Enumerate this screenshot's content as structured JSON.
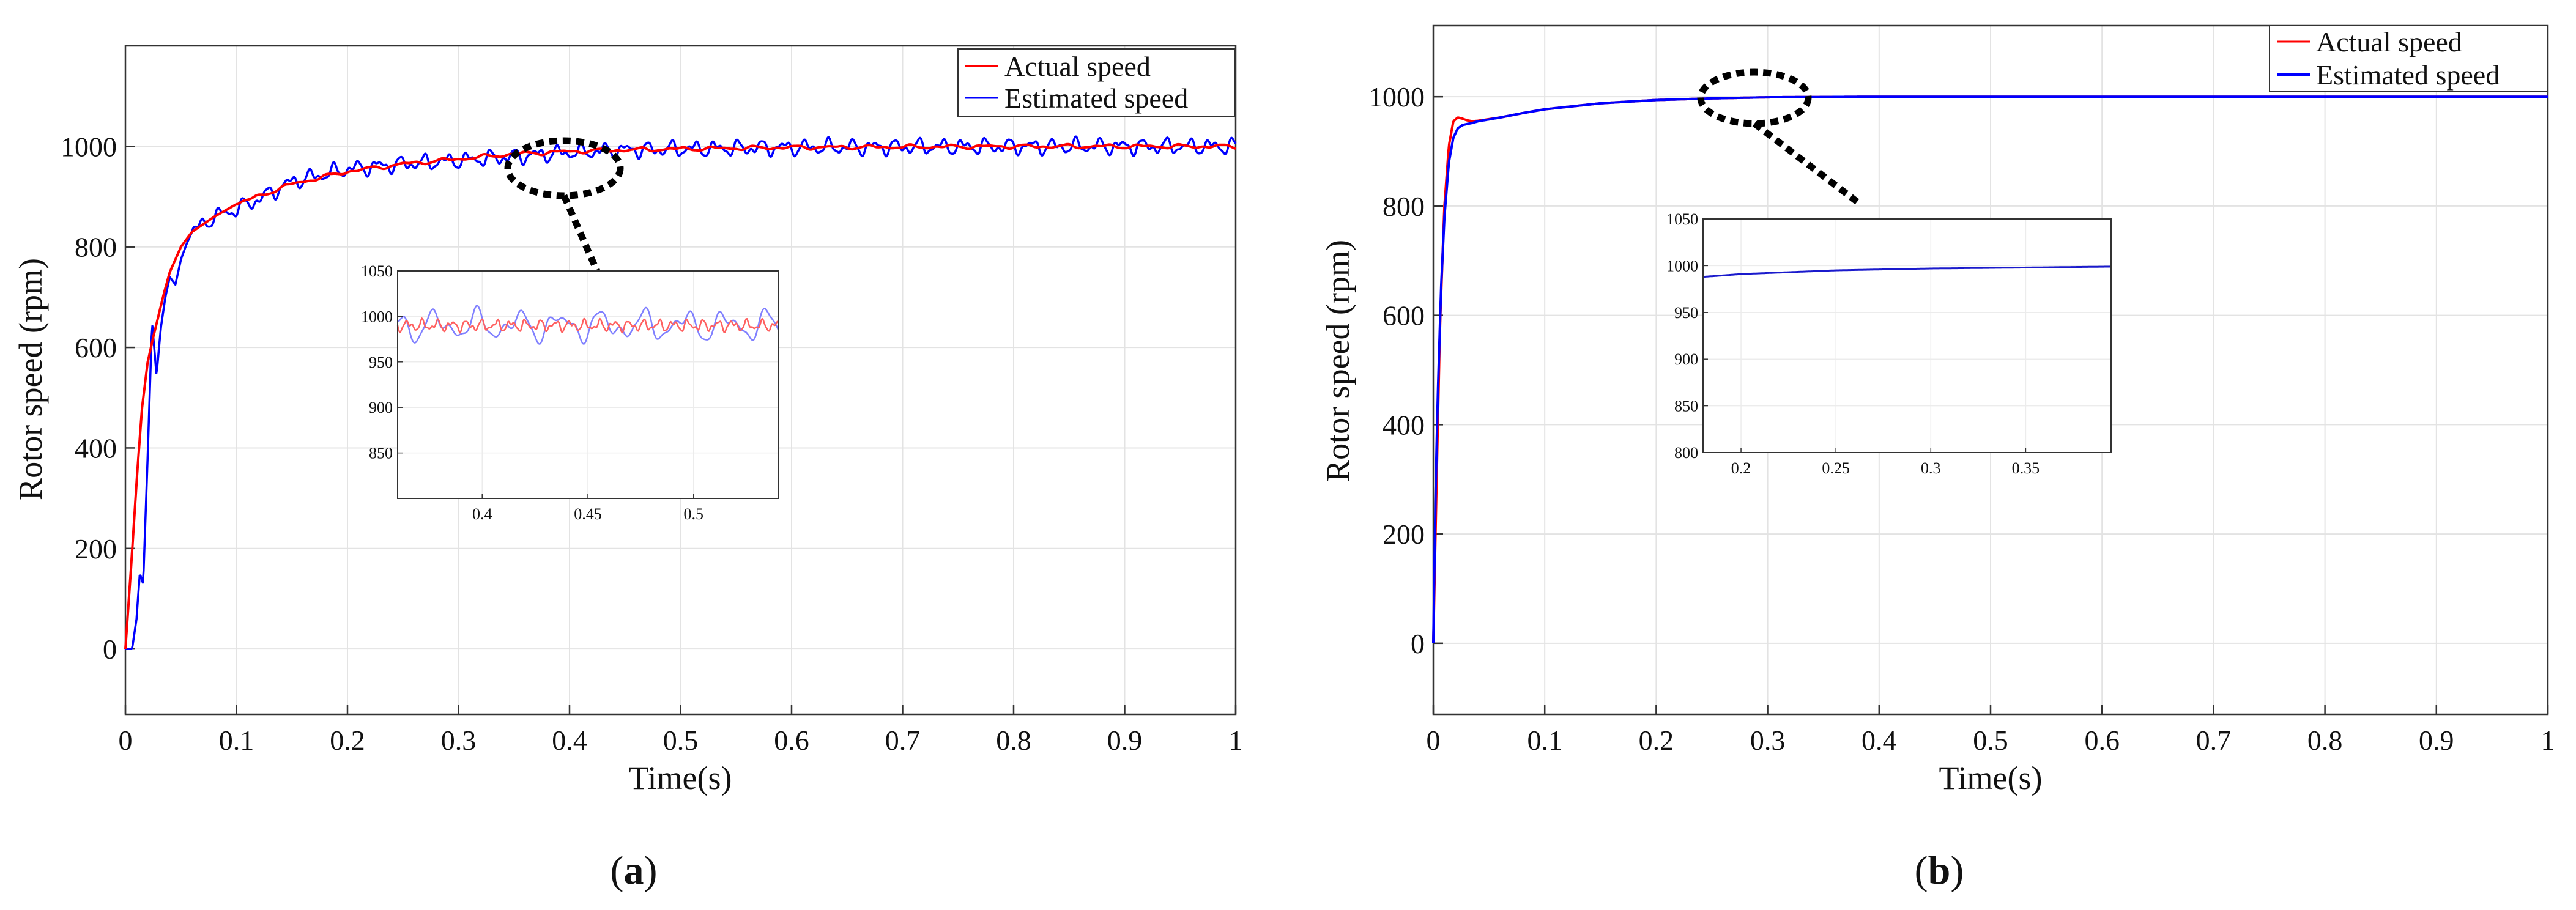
{
  "chart_data": [
    {
      "type": "line",
      "panel_label": "a",
      "xlabel": "Time(s)",
      "ylabel": "Rotor speed (rpm)",
      "xlim": [
        0,
        1
      ],
      "ylim": [
        -130,
        1200
      ],
      "xticks": [
        0,
        0.1,
        0.2,
        0.3,
        0.4,
        0.5,
        0.6,
        0.7,
        0.8,
        0.9,
        1
      ],
      "xtick_labels": [
        "0",
        "0.1",
        "0.2",
        "0.3",
        "0.4",
        "0.5",
        "0.6",
        "0.7",
        "0.8",
        "0.9",
        "1"
      ],
      "yticks": [
        0,
        200,
        400,
        600,
        800,
        1000
      ],
      "ytick_labels": [
        "0",
        "200",
        "400",
        "600",
        "800",
        "1000"
      ],
      "legend": [
        "Actual speed",
        "Estimated speed"
      ],
      "legend_location": "top-right",
      "series": [
        {
          "name": "Actual speed",
          "color": "#ff0000",
          "x": [
            0,
            0.005,
            0.01,
            0.015,
            0.02,
            0.025,
            0.03,
            0.035,
            0.04,
            0.05,
            0.06,
            0.08,
            0.1,
            0.15,
            0.2,
            0.25,
            0.3,
            0.35,
            0.4,
            0.45,
            0.5,
            0.6,
            0.7,
            0.8,
            0.9,
            1.0
          ],
          "y": [
            0,
            160,
            330,
            480,
            570,
            620,
            665,
            710,
            750,
            800,
            830,
            860,
            885,
            925,
            950,
            965,
            975,
            985,
            990,
            993,
            995,
            998,
            999,
            1000,
            1000,
            1000
          ]
        },
        {
          "name": "Estimated speed",
          "color": "#0000ff",
          "x": [
            0,
            0.006,
            0.01,
            0.013,
            0.016,
            0.02,
            0.024,
            0.028,
            0.032,
            0.036,
            0.04,
            0.045,
            0.05,
            0.055,
            0.06,
            0.07,
            0.08,
            0.1,
            0.12,
            0.15,
            0.2,
            0.25,
            0.3,
            0.35,
            0.4,
            0.45,
            0.5,
            0.6,
            0.7,
            0.8,
            0.9,
            1.0
          ],
          "y": [
            0,
            0,
            60,
            150,
            130,
            380,
            650,
            545,
            640,
            700,
            740,
            725,
            775,
            805,
            830,
            845,
            860,
            875,
            895,
            930,
            955,
            965,
            972,
            980,
            988,
            993,
            995,
            998,
            999,
            1000,
            1000,
            1000
          ],
          "oscillation_amplitude": 20
        }
      ],
      "zoom_ellipse_center": [
        0.4,
        1000
      ],
      "inset": {
        "xlim": [
          0.36,
          0.54
        ],
        "ylim": [
          800,
          1050
        ],
        "xticks": [
          0.4,
          0.45,
          0.5
        ],
        "xtick_labels": [
          "0.4",
          "0.45",
          "0.5"
        ],
        "yticks": [
          850,
          900,
          950,
          1000,
          1050
        ],
        "ytick_labels": [
          "850",
          "900",
          "950",
          "1000",
          "1050"
        ],
        "actual_mean": 990,
        "actual_amplitude": 8,
        "estimated_mean": 990,
        "estimated_amplitude": 22
      }
    },
    {
      "type": "line",
      "panel_label": "b",
      "xlabel": "Time(s)",
      "ylabel": "Rotor speed (rpm)",
      "xlim": [
        0,
        1
      ],
      "ylim": [
        -130,
        1130
      ],
      "xticks": [
        0,
        0.1,
        0.2,
        0.3,
        0.4,
        0.5,
        0.6,
        0.7,
        0.8,
        0.9,
        1
      ],
      "xtick_labels": [
        "0",
        "0.1",
        "0.2",
        "0.3",
        "0.4",
        "0.5",
        "0.6",
        "0.7",
        "0.8",
        "0.9",
        "1"
      ],
      "yticks": [
        0,
        200,
        400,
        600,
        800,
        1000
      ],
      "ytick_labels": [
        "0",
        "200",
        "400",
        "600",
        "800",
        "1000"
      ],
      "legend": [
        "Actual speed",
        "Estimated speed"
      ],
      "legend_location": "top-right",
      "series": [
        {
          "name": "Actual speed",
          "color": "#ff0000",
          "x": [
            0,
            0.003,
            0.006,
            0.01,
            0.014,
            0.018,
            0.022,
            0.026,
            0.03,
            0.035,
            0.04,
            0.06,
            0.08,
            0.1,
            0.15,
            0.2,
            0.25,
            0.3,
            0.4,
            0.5,
            0.6,
            0.7,
            0.8,
            0.9,
            1.0
          ],
          "y": [
            0,
            300,
            580,
            800,
            910,
            955,
            962,
            960,
            957,
            955,
            956,
            962,
            970,
            977,
            988,
            994,
            997,
            999,
            1000,
            1000,
            1000,
            1000,
            1000,
            1000,
            1000
          ]
        },
        {
          "name": "Estimated speed",
          "color": "#0000ff",
          "x": [
            0,
            0.002,
            0.004,
            0.007,
            0.01,
            0.014,
            0.018,
            0.022,
            0.026,
            0.03,
            0.035,
            0.04,
            0.06,
            0.08,
            0.1,
            0.15,
            0.2,
            0.25,
            0.3,
            0.4,
            0.5,
            0.6,
            0.7,
            0.8,
            0.9,
            1.0
          ],
          "y": [
            0,
            270,
            450,
            650,
            780,
            880,
            925,
            942,
            948,
            950,
            952,
            955,
            962,
            970,
            977,
            988,
            994,
            997,
            999,
            1000,
            1000,
            1000,
            1000,
            1000,
            1000,
            1000
          ]
        }
      ],
      "zoom_ellipse_center": [
        0.29,
        1000
      ],
      "inset": {
        "xlim": [
          0.18,
          0.395
        ],
        "ylim": [
          800,
          1050
        ],
        "xticks": [
          0.2,
          0.25,
          0.3,
          0.35
        ],
        "xtick_labels": [
          "0.2",
          "0.25",
          "0.3",
          "0.35"
        ],
        "yticks": [
          800,
          850,
          900,
          950,
          1000,
          1050
        ],
        "ytick_labels": [
          "800",
          "850",
          "900",
          "950",
          "1000",
          "1050"
        ],
        "series_x": [
          0.18,
          0.2,
          0.25,
          0.3,
          0.35,
          0.395
        ],
        "series_y": [
          988,
          991,
          995,
          997,
          998,
          999
        ]
      }
    }
  ]
}
